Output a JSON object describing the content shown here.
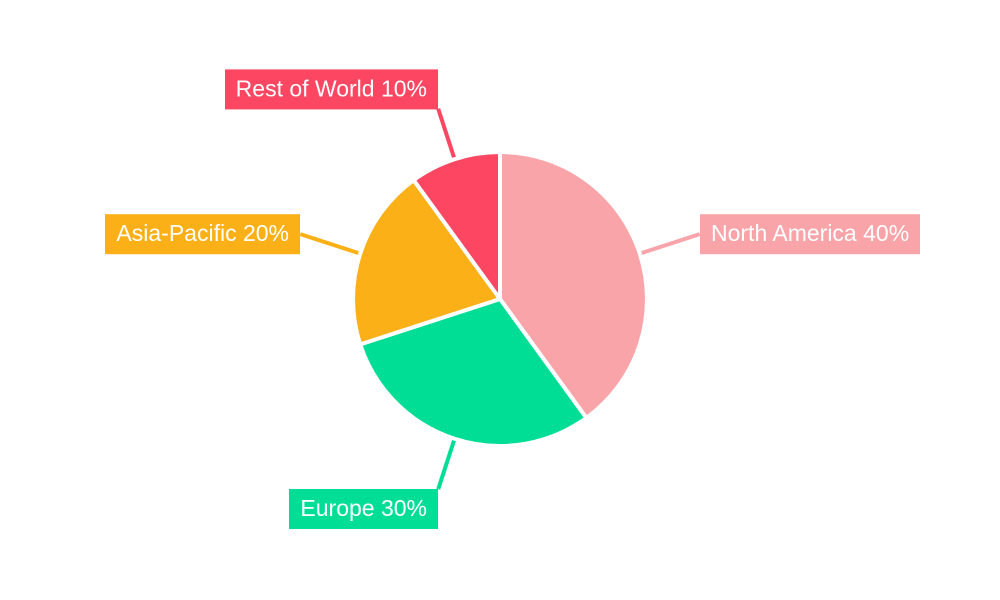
{
  "chart_data": {
    "type": "pie",
    "title": "",
    "categories": [
      "North America",
      "Europe",
      "Asia-Pacific",
      "Rest of World"
    ],
    "values": [
      40,
      30,
      20,
      10
    ],
    "unit": "%",
    "slices": [
      {
        "label": "North America",
        "value": 40,
        "display": "North America 40%",
        "color": "#F9A4A8"
      },
      {
        "label": "Europe",
        "value": 30,
        "display": "Europe 30%",
        "color": "#00DD94"
      },
      {
        "label": "Asia-Pacific",
        "value": 20,
        "display": "Asia-Pacific 20%",
        "color": "#FBB018"
      },
      {
        "label": "Rest of World",
        "value": 10,
        "display": "Rest of World 10%",
        "color": "#FC4662"
      }
    ],
    "start_position": "12 o'clock",
    "direction": "clockwise",
    "legend": "none; external boxed labels with leader lines",
    "separator_color": "#FFFFFF",
    "label_text_color": "#FFFFFF",
    "background": "#FFFFFF"
  }
}
